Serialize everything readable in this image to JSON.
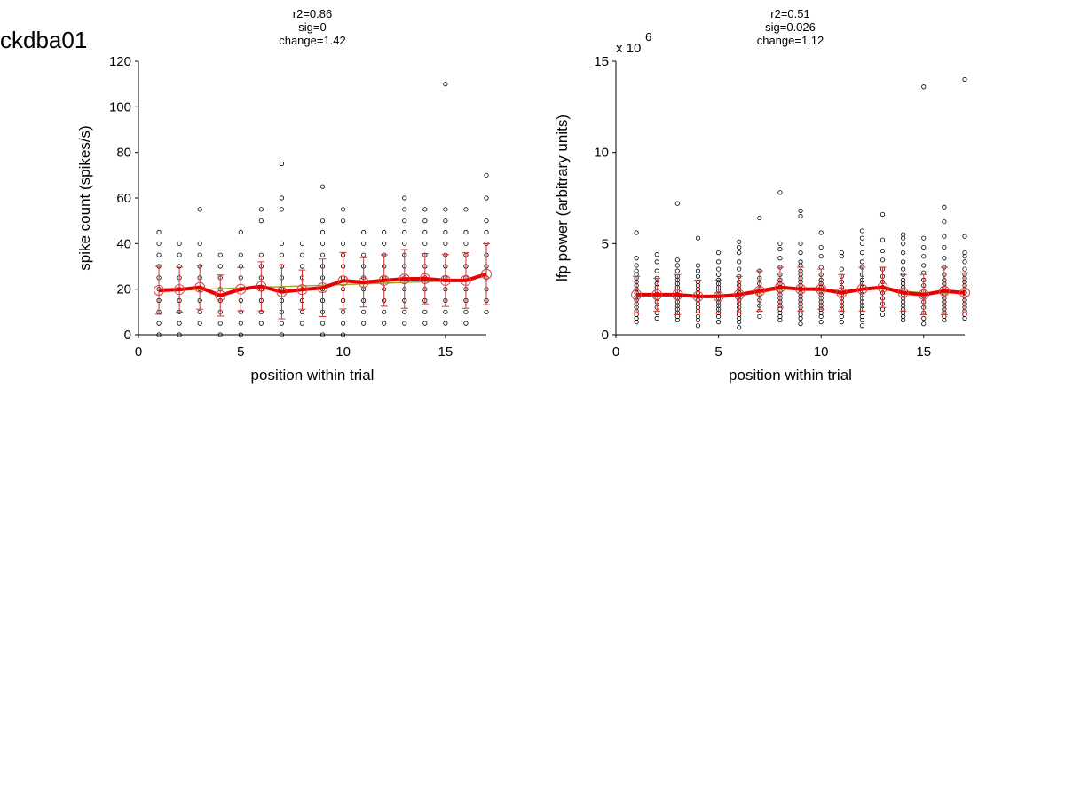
{
  "figure_label": "ckdba01",
  "chart_data": [
    {
      "type": "scatter",
      "stats": [
        "r2=0.86",
        "sig=0",
        "change=1.42"
      ],
      "xlabel": "position within trial",
      "ylabel": "spike count (spikes/s)",
      "exponent_label": "",
      "exponent_power": "",
      "xlim": [
        0,
        17
      ],
      "ylim": [
        0,
        120
      ],
      "xticks": [
        0,
        5,
        10,
        15
      ],
      "yticks": [
        0,
        20,
        40,
        60,
        80,
        100,
        120
      ],
      "grid": false,
      "points": [
        {
          "x": 1,
          "y": [
            0,
            5,
            10,
            15,
            20,
            25,
            30,
            35,
            40,
            45
          ]
        },
        {
          "x": 2,
          "y": [
            0,
            5,
            10,
            15,
            20,
            25,
            30,
            35,
            40
          ]
        },
        {
          "x": 3,
          "y": [
            5,
            10,
            15,
            20,
            25,
            30,
            35,
            40,
            55
          ]
        },
        {
          "x": 4,
          "y": [
            0,
            5,
            10,
            15,
            20,
            25,
            30,
            35
          ]
        },
        {
          "x": 5,
          "y": [
            0,
            5,
            10,
            15,
            20,
            25,
            30,
            35,
            45
          ]
        },
        {
          "x": 6,
          "y": [
            5,
            10,
            15,
            20,
            25,
            30,
            35,
            50,
            55
          ]
        },
        {
          "x": 7,
          "y": [
            0,
            5,
            10,
            15,
            20,
            25,
            30,
            35,
            40,
            55,
            60,
            75
          ]
        },
        {
          "x": 8,
          "y": [
            5,
            10,
            15,
            20,
            25,
            30,
            35,
            40
          ]
        },
        {
          "x": 9,
          "y": [
            0,
            5,
            10,
            15,
            20,
            25,
            30,
            35,
            40,
            45,
            50,
            65
          ]
        },
        {
          "x": 10,
          "y": [
            0,
            5,
            10,
            15,
            20,
            25,
            30,
            35,
            40,
            50,
            55
          ]
        },
        {
          "x": 11,
          "y": [
            5,
            10,
            15,
            20,
            25,
            30,
            35,
            40,
            45
          ]
        },
        {
          "x": 12,
          "y": [
            5,
            10,
            15,
            20,
            25,
            30,
            35,
            40,
            45
          ]
        },
        {
          "x": 13,
          "y": [
            5,
            10,
            15,
            20,
            25,
            30,
            35,
            40,
            45,
            50,
            55,
            60
          ]
        },
        {
          "x": 14,
          "y": [
            5,
            10,
            15,
            20,
            25,
            30,
            35,
            40,
            45,
            50,
            55
          ]
        },
        {
          "x": 15,
          "y": [
            5,
            10,
            15,
            20,
            25,
            30,
            35,
            40,
            45,
            50,
            55,
            110
          ]
        },
        {
          "x": 16,
          "y": [
            5,
            10,
            15,
            20,
            25,
            30,
            35,
            40,
            45,
            55
          ]
        },
        {
          "x": 17,
          "y": [
            10,
            15,
            20,
            25,
            30,
            35,
            40,
            45,
            50,
            60,
            70
          ]
        }
      ],
      "means": [
        19.5,
        19.8,
        20.8,
        17.2,
        20.0,
        21.2,
        18.8,
        19.8,
        20.6,
        23.7,
        23.0,
        23.8,
        24.5,
        24.6,
        23.8,
        23.8,
        26.6
      ],
      "sd": [
        10.5,
        9.8,
        9.6,
        9.0,
        9.5,
        10.8,
        11.8,
        8.6,
        12.6,
        12.4,
        10.8,
        11.3,
        12.9,
        11.0,
        11.4,
        12.2,
        13.4
      ],
      "fit": [
        19.3,
        19.6,
        19.9,
        20.2,
        20.5,
        20.8,
        21.1,
        21.4,
        21.7,
        22.0,
        22.3,
        22.6,
        22.9,
        23.2,
        23.5,
        23.8,
        26.3
      ]
    },
    {
      "type": "scatter",
      "stats": [
        "r2=0.51",
        "sig=0.026",
        "change=1.12"
      ],
      "xlabel": "position within trial",
      "ylabel": "lfp power (arbitrary units)",
      "exponent_label": "x 10",
      "exponent_power": "6",
      "xlim": [
        0,
        17
      ],
      "ylim": [
        0,
        15
      ],
      "xticks": [
        0,
        5,
        10,
        15
      ],
      "yticks": [
        0,
        5,
        10,
        15
      ],
      "grid": false,
      "points": [
        {
          "x": 1,
          "y": [
            0.7,
            0.9,
            1.1,
            1.3,
            1.5,
            1.7,
            1.9,
            2.1,
            2.3,
            2.5,
            2.7,
            2.9,
            3.1,
            3.3,
            3.5,
            3.8,
            4.2,
            5.6
          ]
        },
        {
          "x": 2,
          "y": [
            0.9,
            1.2,
            1.5,
            1.8,
            2.0,
            2.2,
            2.4,
            2.6,
            2.8,
            3.1,
            3.5,
            4.0,
            4.4
          ]
        },
        {
          "x": 3,
          "y": [
            0.8,
            1.0,
            1.2,
            1.4,
            1.6,
            1.8,
            2.0,
            2.2,
            2.4,
            2.6,
            2.8,
            3.0,
            3.2,
            3.5,
            3.8,
            4.1,
            7.2
          ]
        },
        {
          "x": 4,
          "y": [
            0.5,
            0.8,
            1.0,
            1.3,
            1.5,
            1.7,
            1.9,
            2.1,
            2.3,
            2.5,
            2.7,
            2.9,
            3.2,
            3.5,
            3.8,
            5.3
          ]
        },
        {
          "x": 5,
          "y": [
            0.7,
            1.0,
            1.2,
            1.4,
            1.6,
            1.8,
            2.0,
            2.2,
            2.4,
            2.6,
            2.8,
            3.0,
            3.3,
            3.6,
            4.0,
            4.5
          ]
        },
        {
          "x": 6,
          "y": [
            0.4,
            0.7,
            0.9,
            1.1,
            1.3,
            1.5,
            1.7,
            1.9,
            2.1,
            2.3,
            2.5,
            2.7,
            2.9,
            3.2,
            3.6,
            4.0,
            4.5,
            4.8,
            5.1
          ]
        },
        {
          "x": 7,
          "y": [
            1.0,
            1.3,
            1.6,
            1.9,
            2.2,
            2.5,
            2.8,
            3.1,
            3.5,
            6.4
          ]
        },
        {
          "x": 8,
          "y": [
            0.8,
            1.0,
            1.2,
            1.4,
            1.6,
            1.8,
            2.0,
            2.2,
            2.4,
            2.6,
            2.8,
            3.0,
            3.3,
            3.7,
            4.2,
            4.7,
            5.0,
            7.8
          ]
        },
        {
          "x": 9,
          "y": [
            0.6,
            0.9,
            1.1,
            1.3,
            1.5,
            1.7,
            1.9,
            2.1,
            2.3,
            2.5,
            2.7,
            2.9,
            3.1,
            3.3,
            3.5,
            3.8,
            4.0,
            4.5,
            5.0,
            6.5,
            6.8
          ]
        },
        {
          "x": 10,
          "y": [
            0.7,
            1.0,
            1.2,
            1.4,
            1.6,
            1.8,
            2.0,
            2.2,
            2.4,
            2.6,
            2.8,
            3.0,
            3.3,
            3.7,
            4.3,
            4.8,
            5.6
          ]
        },
        {
          "x": 11,
          "y": [
            0.7,
            1.0,
            1.2,
            1.4,
            1.6,
            1.8,
            2.0,
            2.2,
            2.4,
            2.6,
            2.9,
            3.2,
            3.6,
            4.3,
            4.5
          ]
        },
        {
          "x": 12,
          "y": [
            0.5,
            0.8,
            1.0,
            1.2,
            1.4,
            1.6,
            1.8,
            2.0,
            2.2,
            2.4,
            2.6,
            2.8,
            3.0,
            3.3,
            3.7,
            4.0,
            4.5,
            5.0,
            5.3,
            5.7
          ]
        },
        {
          "x": 13,
          "y": [
            1.1,
            1.4,
            1.7,
            2.0,
            2.3,
            2.6,
            2.9,
            3.2,
            3.6,
            4.1,
            4.6,
            5.2,
            6.6
          ]
        },
        {
          "x": 14,
          "y": [
            0.8,
            1.0,
            1.2,
            1.4,
            1.6,
            1.8,
            2.0,
            2.2,
            2.4,
            2.6,
            2.8,
            3.0,
            3.3,
            3.6,
            4.0,
            4.5,
            5.0,
            5.3,
            5.5
          ]
        },
        {
          "x": 15,
          "y": [
            0.6,
            0.9,
            1.2,
            1.5,
            1.8,
            2.1,
            2.4,
            2.7,
            3.0,
            3.4,
            3.8,
            4.3,
            4.8,
            5.3,
            13.6
          ]
        },
        {
          "x": 16,
          "y": [
            0.8,
            1.0,
            1.2,
            1.4,
            1.6,
            1.8,
            2.0,
            2.2,
            2.4,
            2.6,
            2.8,
            3.0,
            3.3,
            3.7,
            4.2,
            4.8,
            5.4,
            6.2,
            7.0
          ]
        },
        {
          "x": 17,
          "y": [
            0.9,
            1.1,
            1.3,
            1.5,
            1.7,
            1.9,
            2.1,
            2.3,
            2.5,
            2.7,
            2.9,
            3.1,
            3.3,
            3.6,
            4.0,
            4.3,
            4.5,
            5.4,
            14.0
          ]
        }
      ],
      "means": [
        2.2,
        2.2,
        2.2,
        2.1,
        2.1,
        2.2,
        2.4,
        2.6,
        2.5,
        2.5,
        2.3,
        2.5,
        2.6,
        2.3,
        2.2,
        2.4,
        2.3
      ],
      "sd": [
        1.0,
        0.9,
        1.1,
        0.9,
        0.9,
        1.0,
        1.1,
        1.1,
        1.2,
        1.1,
        1.0,
        1.2,
        1.1,
        1.0,
        1.1,
        1.3,
        1.1
      ],
      "fit": [
        2.2,
        2.2,
        2.2,
        2.1,
        2.2,
        2.2,
        2.3,
        2.5,
        2.5,
        2.4,
        2.4,
        2.5,
        2.5,
        2.4,
        2.3,
        2.3,
        2.3
      ]
    }
  ]
}
